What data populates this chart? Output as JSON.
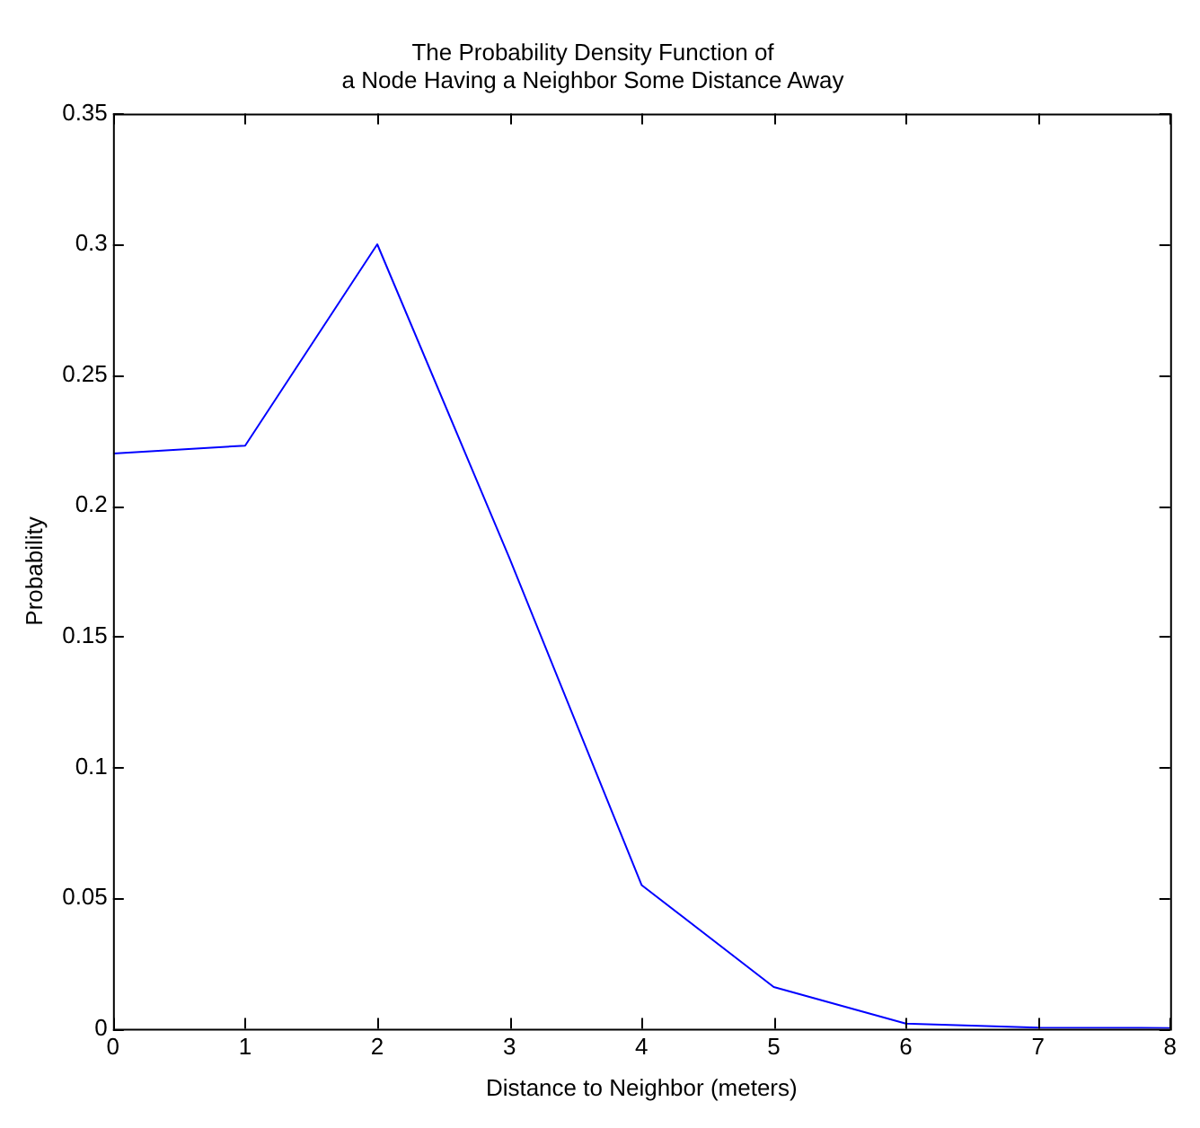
{
  "chart_data": {
    "type": "line",
    "title": "The Probability Density Function of\na Node Having a Neighbor Some Distance Away",
    "xlabel": "Distance to Neighbor (meters)",
    "ylabel": "Probability",
    "x": [
      0,
      1,
      2,
      3,
      4,
      5,
      6,
      7,
      8
    ],
    "series": [
      {
        "color": "#0000ff",
        "values": [
          0.22,
          0.223,
          0.3,
          0.18,
          0.055,
          0.016,
          0.002,
          0.0005,
          0.0003
        ]
      }
    ],
    "xlim": [
      0,
      8
    ],
    "xticks": [
      0,
      1,
      2,
      3,
      4,
      5,
      6,
      7,
      8
    ],
    "ylim": [
      0,
      0.35
    ],
    "yticks": [
      0,
      0.05,
      0.1,
      0.15,
      0.2,
      0.25,
      0.3,
      0.35
    ],
    "grid": false,
    "legend": false,
    "marker": "none",
    "line_style": "solid"
  }
}
